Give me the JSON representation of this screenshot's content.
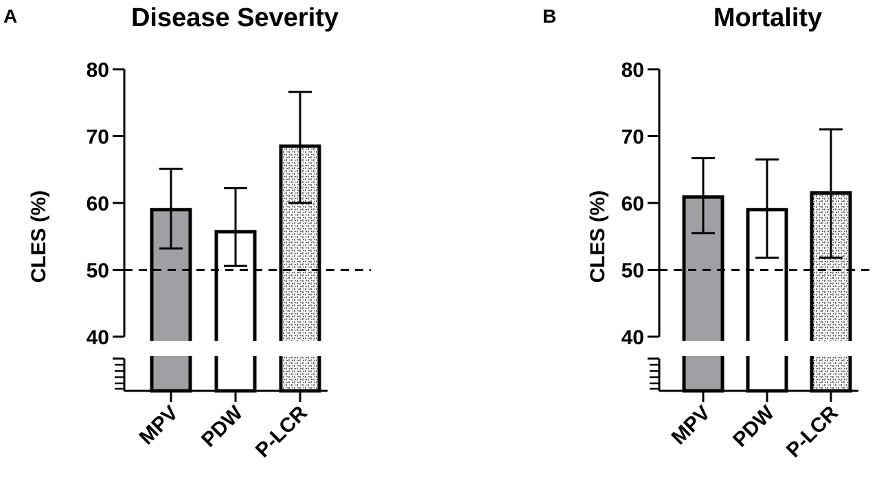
{
  "panels": [
    {
      "letter": "A",
      "title": "Disease Severity",
      "ylabel": "CLES (%)"
    },
    {
      "letter": "B",
      "title": "Mortality",
      "ylabel": "CLES (%)"
    }
  ],
  "colors": {
    "mpv_fill": "#a0a0a4",
    "pdw_fill": "#ffffff",
    "plcr_pattern": "dashed-hatch",
    "stroke": "#000000"
  },
  "chart_data": [
    {
      "type": "bar",
      "title": "Disease Severity",
      "xlabel": "",
      "ylabel": "CLES (%)",
      "ylim": [
        40,
        80
      ],
      "yticks": [
        40,
        50,
        60,
        70,
        80
      ],
      "axis_break_below": 40,
      "reference_line": 50,
      "categories": [
        "MPV",
        "PDW",
        "P-LCR"
      ],
      "values": [
        59,
        55.7,
        68.5
      ],
      "error_low": [
        53.2,
        50.6,
        60
      ],
      "error_high": [
        65.1,
        62.2,
        76.6
      ]
    },
    {
      "type": "bar",
      "title": "Mortality",
      "xlabel": "",
      "ylabel": "CLES (%)",
      "ylim": [
        40,
        80
      ],
      "yticks": [
        40,
        50,
        60,
        70,
        80
      ],
      "axis_break_below": 40,
      "reference_line": 50,
      "categories": [
        "MPV",
        "PDW",
        "P-LCR"
      ],
      "values": [
        60.9,
        59,
        61.5
      ],
      "error_low": [
        55.5,
        51.8,
        51.8
      ],
      "error_high": [
        66.7,
        66.5,
        71
      ]
    }
  ]
}
